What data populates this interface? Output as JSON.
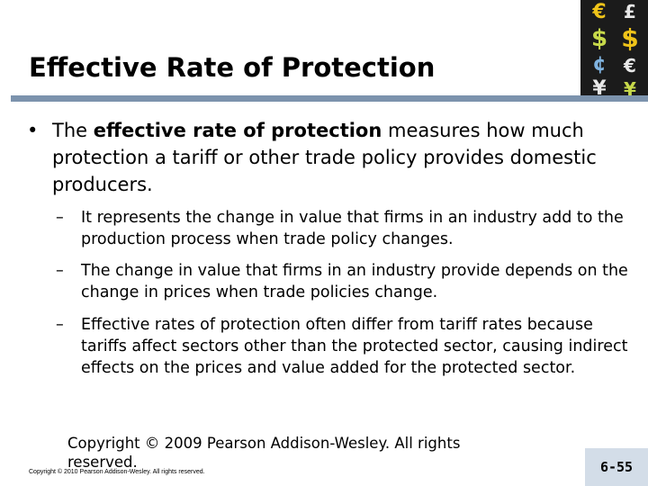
{
  "slide": {
    "title": "Effective Rate of Protection",
    "bullet": {
      "marker": "•",
      "pre": "The ",
      "bold": "effective rate of protection",
      "post": " measures how much protection a tariff or other trade policy provides domestic producers."
    },
    "subbullets": [
      {
        "marker": "–",
        "text": "It represents the change in value that firms in an industry add to the production process when trade policy changes."
      },
      {
        "marker": "–",
        "text": "The change in value that firms in an industry provide depends on the change in prices when trade policies change."
      },
      {
        "marker": "–",
        "text": "Effective rates of protection often differ from tariff rates because tariffs affect sectors other than the protected sector, causing indirect effects on the prices and value added for the protected sector."
      }
    ]
  },
  "footer": {
    "copyright": "Copyright © 2009 Pearson Addison-Wesley. All rights reserved.",
    "small_copyright": "Copyright © 2010 Pearson Addison-Wesley. All rights reserved.",
    "page_number": "6-55"
  },
  "logo": {
    "glyphs_left": [
      "€",
      "$",
      "¢",
      "¥"
    ],
    "glyphs_right": [
      "£",
      "$",
      "€",
      "¥"
    ],
    "colors": [
      "#f0c419",
      "#c7d94a",
      "#7fb3e0",
      "#e8e8e8"
    ]
  }
}
